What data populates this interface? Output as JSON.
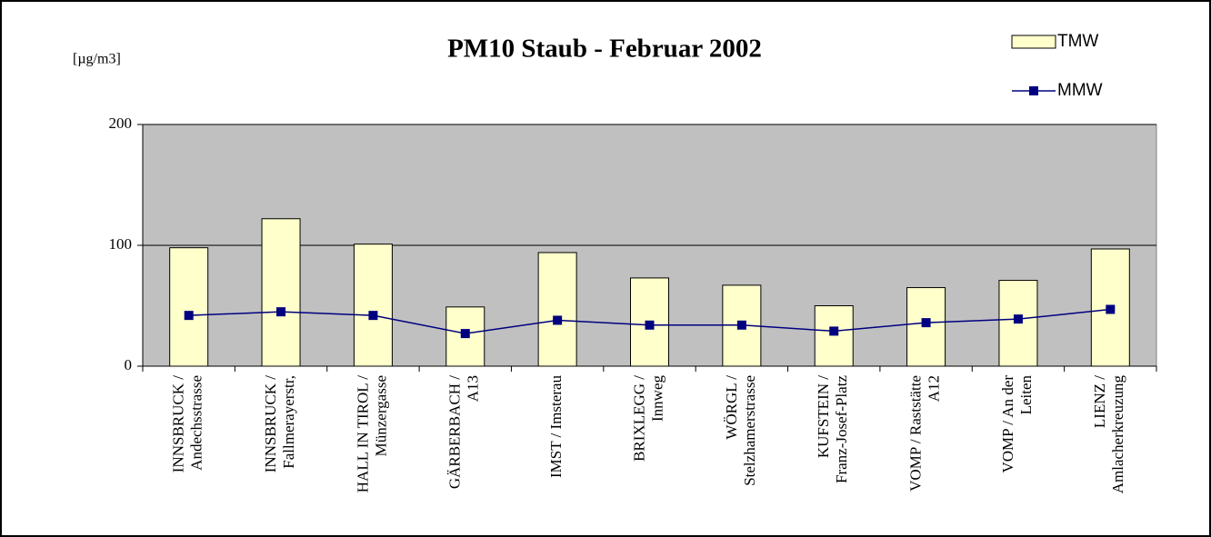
{
  "chart_data": {
    "type": "bar-line",
    "title": "PM10 Staub - Februar 2002",
    "y_label": "[µg/m3]",
    "categories": [
      [
        "INNSBRUCK /",
        "Andechsstrasse"
      ],
      [
        "INNSBRUCK /",
        "Fallmerayerstr,"
      ],
      [
        "HALL IN TIROL /",
        "Münzergasse"
      ],
      [
        "GÄRBERBACH /",
        "A13"
      ],
      [
        "IMST / Imsterau"
      ],
      [
        "BRIXLEGG /",
        "Innweg"
      ],
      [
        "WÖRGL /",
        "Stelzhamerstrasse"
      ],
      [
        "KUFSTEIN /",
        "Franz-Josef-Platz"
      ],
      [
        "VOMP / Raststätte",
        "A12"
      ],
      [
        "VOMP / An der",
        "Leiten"
      ],
      [
        "LIENZ /",
        "Amlacherkreuzung"
      ]
    ],
    "series": [
      {
        "name": "TMW",
        "type": "bar",
        "color": "#ffffcc",
        "values": [
          98,
          122,
          101,
          49,
          94,
          73,
          67,
          50,
          65,
          71,
          97
        ]
      },
      {
        "name": "MMW",
        "type": "line",
        "color": "#000080",
        "values": [
          42,
          45,
          42,
          27,
          38,
          34,
          34,
          29,
          36,
          39,
          47
        ]
      }
    ],
    "ylim": [
      0,
      200
    ],
    "yticks": [
      0,
      100,
      200
    ],
    "grid": true,
    "plot_background": "#c0c0c0"
  }
}
